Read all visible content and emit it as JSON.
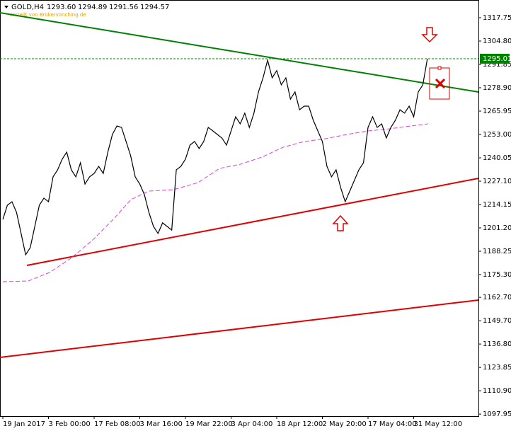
{
  "chart_data": {
    "type": "line",
    "series": [
      {
        "name": "GOLD,H4",
        "color": "#000000",
        "values": [
          1205.9,
          1213.8,
          1215.7,
          1209.8,
          1198.1,
          1186.3,
          1190.2,
          1202.0,
          1213.8,
          1217.7,
          1215.7,
          1229.5,
          1233.4,
          1239.3,
          1243.2,
          1233.4,
          1229.5,
          1237.3,
          1225.5,
          1229.5,
          1231.4,
          1235.3,
          1231.4,
          1243.2,
          1253.0,
          1257.7,
          1256.9,
          1249.1,
          1241.2,
          1229.5,
          1225.5,
          1219.7,
          1209.8,
          1202.0,
          1198.1,
          1204.0,
          1202.0,
          1200.0,
          1233.4,
          1235.3,
          1239.3,
          1247.1,
          1249.1,
          1245.2,
          1249.1,
          1256.9,
          1255.0,
          1253.0,
          1251.0,
          1247.1,
          1255.0,
          1262.8,
          1258.9,
          1264.8,
          1256.9,
          1264.8,
          1276.6,
          1284.4,
          1294.2,
          1284.4,
          1288.4,
          1280.5,
          1284.4,
          1272.6,
          1276.6,
          1266.7,
          1268.7,
          1268.7,
          1260.9,
          1255.0,
          1249.1,
          1235.3,
          1229.5,
          1233.4,
          1223.6,
          1215.7,
          1221.6,
          1227.5,
          1233.4,
          1237.3,
          1256.9,
          1262.8,
          1256.9,
          1258.9,
          1251.0,
          1256.9,
          1260.9,
          1266.7,
          1264.8,
          1268.7,
          1262.8,
          1276.6,
          1280.5,
          1295.0
        ]
      }
    ],
    "quote": [
      "1293.60",
      "1294.89",
      "1291.56",
      "1294.57"
    ],
    "watermark": "erstellt von Brokervonching.de",
    "categories": [
      "19 Jan 2017",
      null,
      null,
      null,
      null,
      null,
      null,
      null,
      null,
      null,
      "3 Feb 00:00",
      null,
      null,
      null,
      null,
      null,
      null,
      null,
      null,
      null,
      "17 Feb 08:00",
      null,
      null,
      null,
      null,
      null,
      null,
      null,
      null,
      null,
      "3 Mar 16:00",
      null,
      null,
      null,
      null,
      null,
      null,
      null,
      null,
      null,
      "19 Mar 22:00",
      null,
      null,
      null,
      null,
      null,
      null,
      null,
      null,
      null,
      "3 Apr 04:00",
      null,
      null,
      null,
      null,
      null,
      null,
      null,
      null,
      null,
      "18 Apr 12:00",
      null,
      null,
      null,
      null,
      null,
      null,
      null,
      null,
      null,
      "2 May 20:00",
      null,
      null,
      null,
      null,
      null,
      null,
      null,
      null,
      null,
      "17 May 04:00",
      null,
      null,
      null,
      null,
      null,
      null,
      null,
      null,
      null,
      "31 May 12:00",
      null,
      null,
      null
    ],
    "current_price": 1295.01,
    "current_price_color": "#008000",
    "ylim": [
      1096.82,
      1327.56
    ],
    "yticks": [
      1317.75,
      {
        "value": 1304.8,
        "label": "1304.80"
      },
      1291.85,
      {
        "value": 1278.9,
        "label": "1278.90"
      },
      1265.95,
      {
        "value": 1253.0,
        "label": "1253.00"
      },
      1240.05,
      {
        "value": 1227.1,
        "label": "1227.10"
      },
      1214.15,
      {
        "value": 1201.2,
        "label": "1201.20"
      },
      1188.25,
      {
        "value": 1175.3,
        "label": "1175.30"
      },
      {
        "value": 1162.7,
        "label": "1162.70"
      },
      {
        "value": 1149.7,
        "label": "1149.70"
      },
      {
        "value": 1136.8,
        "label": "1136.80"
      },
      1123.85,
      {
        "value": 1110.9,
        "label": "1110.90"
      },
      1097.95
    ],
    "grid": false
  }
}
